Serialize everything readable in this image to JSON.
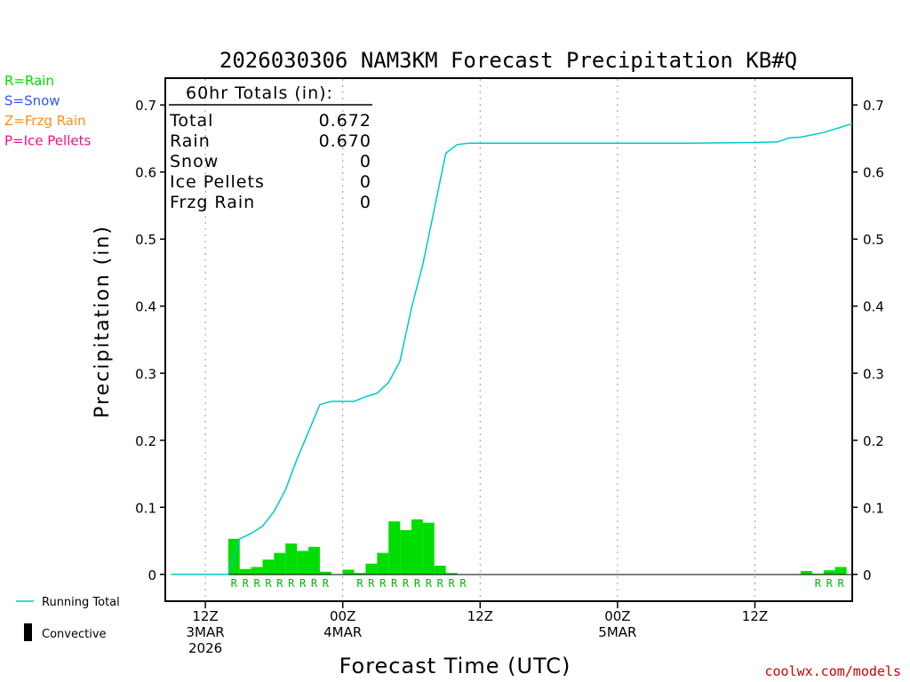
{
  "chart_data": {
    "type": "bar+line",
    "title": "2026030306 NAM3KM Forecast Precipitation KB#Q",
    "xlabel": "Forecast Time (UTC)",
    "ylabel": "Precipitation (in)",
    "ylim": [
      -0.04,
      0.74
    ],
    "xlim_hours": [
      2.5,
      62.5
    ],
    "y_ticks": [
      "0",
      "0.1",
      "0.2",
      "0.3",
      "0.4",
      "0.5",
      "0.6",
      "0.7"
    ],
    "y_tick_values": [
      0,
      0.1,
      0.2,
      0.3,
      0.4,
      0.5,
      0.6,
      0.7
    ],
    "x_ticks": [
      {
        "hour": 6,
        "lines": [
          "12Z",
          "3MAR",
          "2026"
        ]
      },
      {
        "hour": 18,
        "lines": [
          "00Z",
          "4MAR"
        ]
      },
      {
        "hour": 30,
        "lines": [
          "12Z"
        ]
      },
      {
        "hour": 42,
        "lines": [
          "00Z",
          "5MAR"
        ]
      },
      {
        "hour": 54,
        "lines": [
          "12Z"
        ]
      }
    ],
    "grid": "vertical dotted at tick hours",
    "totals_box": {
      "header": "60hr Totals (in):",
      "rows": [
        {
          "label": "Total",
          "value": "0.672"
        },
        {
          "label": "Rain",
          "value": "0.670"
        },
        {
          "label": "Snow",
          "value": "0"
        },
        {
          "label": "Ice Pellets",
          "value": "0"
        },
        {
          "label": "Frzg Rain",
          "value": "0"
        }
      ]
    },
    "type_legend": [
      {
        "text": "R=Rain",
        "color": "#00dd00"
      },
      {
        "text": "S=Snow",
        "color": "#3355ff"
      },
      {
        "text": "Z=Frzg Rain",
        "color": "#ff8c1a"
      },
      {
        "text": "P=Ice Pellets",
        "color": "#ee1188"
      }
    ],
    "series_legend": [
      {
        "text": "Running Total",
        "color": "#00c8c8",
        "kind": "line"
      },
      {
        "text": "Convective",
        "color": "#000000",
        "kind": "bar"
      }
    ],
    "hourly_precip": {
      "name": "Hourly precipitation",
      "color": "#00dd00",
      "x_hours": [
        9,
        10,
        11,
        12,
        13,
        14,
        15,
        16,
        17,
        18,
        19,
        20,
        21,
        22,
        23,
        24,
        25,
        26,
        27,
        28,
        29,
        30,
        31,
        32,
        33,
        34,
        35,
        36,
        37,
        38,
        39,
        40,
        41,
        42,
        43,
        44,
        45,
        46,
        47,
        48,
        49,
        50,
        51,
        52,
        53,
        54,
        55,
        56,
        57,
        58,
        59,
        60,
        61,
        62
      ],
      "values": [
        0.053,
        0.008,
        0.011,
        0.022,
        0.032,
        0.046,
        0.035,
        0.041,
        0.004,
        0,
        0.007,
        0.002,
        0.016,
        0.032,
        0.079,
        0.066,
        0.082,
        0.077,
        0.013,
        0.002,
        0,
        0,
        0,
        0,
        0,
        0,
        0,
        0,
        0,
        0,
        0,
        0,
        0,
        0,
        0,
        0,
        0,
        0,
        0,
        0,
        0,
        0,
        0,
        0,
        0,
        0,
        0,
        0,
        0,
        0,
        0.005,
        0.001,
        0.006,
        0.011
      ]
    },
    "precip_type_marks": {
      "text": "R",
      "x_hours": [
        9,
        10,
        11,
        12,
        13,
        14,
        15,
        16,
        17,
        20,
        21,
        22,
        23,
        24,
        25,
        26,
        27,
        28,
        29,
        60,
        61,
        62
      ]
    },
    "running_total": {
      "name": "Running Total",
      "color": "#00c8c8",
      "points": [
        [
          3,
          0
        ],
        [
          8,
          0
        ],
        [
          9,
          0.053
        ],
        [
          10,
          0.061
        ],
        [
          11,
          0.072
        ],
        [
          12,
          0.094
        ],
        [
          13,
          0.126
        ],
        [
          14,
          0.172
        ],
        [
          15,
          0.212
        ],
        [
          16,
          0.253
        ],
        [
          17,
          0.258
        ],
        [
          18,
          0.258
        ],
        [
          19,
          0.258
        ],
        [
          20,
          0.265
        ],
        [
          21,
          0.27
        ],
        [
          22,
          0.286
        ],
        [
          23,
          0.318
        ],
        [
          24,
          0.397
        ],
        [
          25,
          0.463
        ],
        [
          26,
          0.545
        ],
        [
          27,
          0.628
        ],
        [
          28,
          0.641
        ],
        [
          29,
          0.643
        ],
        [
          30,
          0.643
        ],
        [
          36,
          0.643
        ],
        [
          42,
          0.643
        ],
        [
          48,
          0.643
        ],
        [
          54,
          0.644
        ],
        [
          56,
          0.645
        ],
        [
          57,
          0.651
        ],
        [
          58,
          0.652
        ],
        [
          60,
          0.659
        ],
        [
          62.5,
          0.672
        ]
      ]
    }
  },
  "credit": "coolwx.com/models"
}
